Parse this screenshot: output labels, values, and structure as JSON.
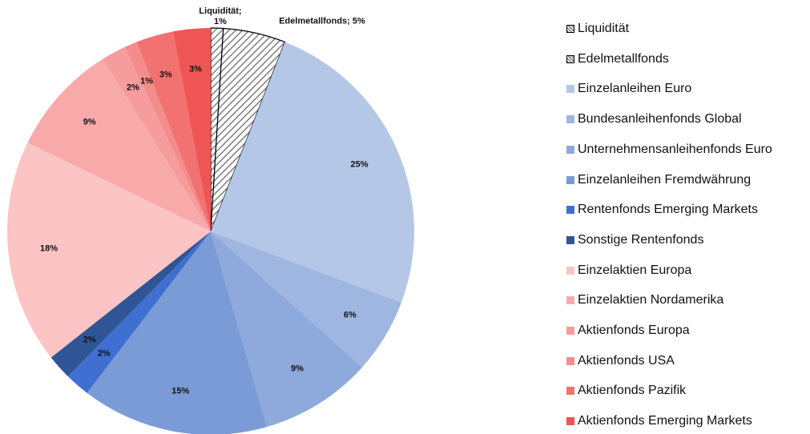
{
  "chart_data": {
    "type": "pie",
    "categories": [
      "Liquidität",
      "Edelmetallfonds",
      "Einzelanleihen Euro",
      "Bundesanleihenfonds Global",
      "Unternehmensanleihenfonds Euro",
      "Einzelanleihen Fremdwährung",
      "Rentenfonds Emerging Markets",
      "Sonstige Rentenfonds",
      "Einzelaktien Europa",
      "Einzelaktien Nordamerika",
      "Aktienfonds Europa",
      "Aktienfonds USA",
      "Aktienfonds Pazifik",
      "Aktienfonds Emerging Markets"
    ],
    "values": [
      1,
      5,
      25,
      6,
      9,
      15,
      2,
      2,
      18,
      9,
      2,
      1,
      3,
      3
    ],
    "value_labels": [
      "Liquidität; 1%",
      "Edelmetallfonds; 5%",
      "25%",
      "6%",
      "9%",
      "15%",
      "2%",
      "2%",
      "18%",
      "9%",
      "2%",
      "1%",
      "3%",
      "3%"
    ],
    "colors": [
      "#ffffff",
      "#ffffff",
      "#b4c7e7",
      "#9fb6e1",
      "#8ea9db",
      "#7b9bd6",
      "#3f6fd0",
      "#2f5597",
      "#fcc4c4",
      "#f8aaaa",
      "#f69c9c",
      "#f48c8c",
      "#f27272",
      "#f05555"
    ],
    "hatched": [
      true,
      true,
      false,
      false,
      false,
      false,
      false,
      false,
      false,
      false,
      false,
      false,
      false,
      false
    ],
    "legend": "right"
  }
}
